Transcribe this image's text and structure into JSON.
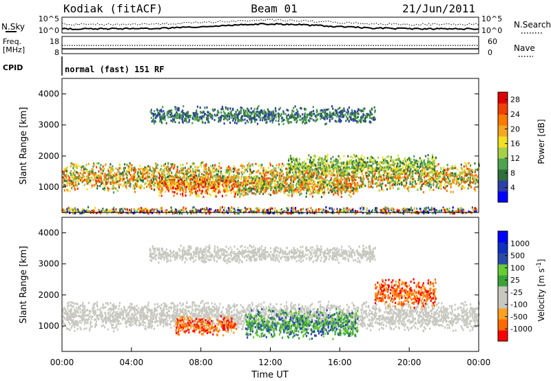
{
  "header": {
    "station": "Kodiak (fitACF)",
    "beam": "Beam 01",
    "date": "21/Jun/2011"
  },
  "top_panels": {
    "nsky_label": "N.Sky",
    "nsearch_label": "N.Search",
    "freq_label_line1": "Freq.",
    "freq_label_line2": "[MHz]",
    "nave_label": "Nave",
    "cpid_label": "CPID",
    "cpid_value": "normal (fast) 151 RF",
    "noise_ticks_left": [
      "10^5",
      "10^0"
    ],
    "noise_ticks_right": [
      "10^5",
      "10^0"
    ],
    "freq_ticks": [
      "18",
      "8"
    ],
    "nave_ticks": [
      "60",
      "0"
    ]
  },
  "colors": {
    "power": [
      "#0000ff",
      "#2f3fa8",
      "#2f6f3c",
      "#4ea34f",
      "#a6d048",
      "#f0e020",
      "#f5a623",
      "#ff7a00",
      "#f04000",
      "#e00000"
    ],
    "velocity": [
      "#ff0000",
      "#ff6a00",
      "#ffa020",
      "#c8c8c0",
      "#c8c8c0",
      "#3aa33a",
      "#66cc33",
      "#2a4aa8",
      "#1030c0",
      "#0000ff"
    ]
  },
  "chart_data": [
    {
      "type": "heatmap",
      "title": "",
      "ylabel": "Slant Range [km]",
      "y_ticks": [
        "1000",
        "2000",
        "3000",
        "4000"
      ],
      "ylim": [
        180,
        4500
      ],
      "xlim": [
        "00:00",
        "24:00"
      ],
      "colorbar": {
        "label": "Power [dB]",
        "ticks": [
          "4",
          "8",
          "12",
          "16",
          "20",
          "24",
          "28"
        ],
        "range": [
          0,
          30
        ]
      },
      "scatter_bands_km": [
        {
          "start_h": 0.0,
          "end_h": 24.0,
          "center_km": 1350,
          "width_km": 500,
          "level": "high"
        },
        {
          "start_h": 5.5,
          "end_h": 10.0,
          "center_km": 1050,
          "width_km": 350,
          "level": "peak"
        },
        {
          "start_h": 10.0,
          "end_h": 17.0,
          "center_km": 1000,
          "width_km": 300,
          "level": "high"
        },
        {
          "start_h": 5.0,
          "end_h": 18.0,
          "center_km": 3350,
          "width_km": 300,
          "level": "low"
        },
        {
          "start_h": 13.0,
          "end_h": 21.5,
          "center_km": 1750,
          "width_km": 350,
          "level": "medium"
        },
        {
          "start_h": 0.0,
          "end_h": 24.0,
          "center_km": 250,
          "width_km": 150,
          "level": "noise"
        }
      ]
    },
    {
      "type": "heatmap",
      "title": "",
      "ylabel": "Slant Range [km]",
      "y_ticks": [
        "1000",
        "2000",
        "3000",
        "4000"
      ],
      "ylim": [
        180,
        4500
      ],
      "xlabel": "Time UT",
      "x_ticks": [
        "00:00",
        "04:00",
        "08:00",
        "12:00",
        "16:00",
        "20:00",
        "00:00"
      ],
      "colorbar": {
        "label": "Velocity [m s^-1]",
        "ticks": [
          "1000",
          "500",
          "100",
          "25",
          "-25",
          "-100",
          "-500",
          "-1000"
        ]
      },
      "scatter_bands_km": [
        {
          "start_h": 0.0,
          "end_h": 24.0,
          "center_km": 1350,
          "width_km": 500,
          "level": "near-zero"
        },
        {
          "start_h": 6.5,
          "end_h": 10.0,
          "center_km": 1050,
          "width_km": 350,
          "level": "away"
        },
        {
          "start_h": 10.5,
          "end_h": 17.0,
          "center_km": 1100,
          "width_km": 500,
          "level": "toward"
        },
        {
          "start_h": 5.0,
          "end_h": 18.0,
          "center_km": 3350,
          "width_km": 300,
          "level": "near-zero"
        },
        {
          "start_h": 18.0,
          "end_h": 21.5,
          "center_km": 2100,
          "width_km": 500,
          "level": "away"
        }
      ]
    }
  ]
}
